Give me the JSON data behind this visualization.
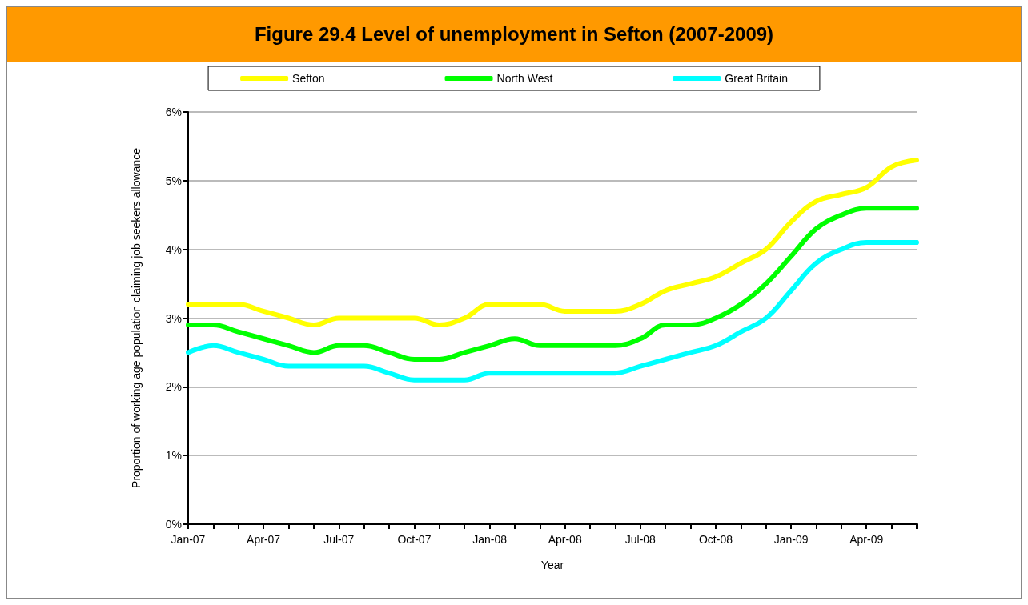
{
  "chart_data": {
    "type": "line",
    "title": "Figure 29.4 Level of unemployment in Sefton (2007-2009)",
    "xlabel": "Year",
    "ylabel": "Proportion of working age population claiming job seekers allowance",
    "categories": [
      "Jan-07",
      null,
      null,
      "Apr-07",
      null,
      null,
      "Jul-07",
      null,
      null,
      "Oct-07",
      null,
      null,
      "Jan-08",
      null,
      null,
      "Apr-08",
      null,
      null,
      "Jul-08",
      null,
      null,
      "Oct-08",
      null,
      null,
      "Jan-09",
      null,
      null,
      "Apr-09",
      null,
      null
    ],
    "series": [
      {
        "name": "Sefton",
        "color": "#ffff00",
        "values": [
          3.2,
          3.2,
          3.2,
          3.1,
          3.0,
          2.9,
          3.0,
          3.0,
          3.0,
          3.0,
          2.9,
          3.0,
          3.2,
          3.2,
          3.2,
          3.1,
          3.1,
          3.1,
          3.2,
          3.4,
          3.5,
          3.6,
          3.8,
          4.0,
          4.4,
          4.7,
          4.8,
          4.9,
          5.2,
          5.3
        ]
      },
      {
        "name": "North West",
        "color": "#00ff00",
        "values": [
          2.9,
          2.9,
          2.8,
          2.7,
          2.6,
          2.5,
          2.6,
          2.6,
          2.5,
          2.4,
          2.4,
          2.5,
          2.6,
          2.7,
          2.6,
          2.6,
          2.6,
          2.6,
          2.7,
          2.9,
          2.9,
          3.0,
          3.2,
          3.5,
          3.9,
          4.3,
          4.5,
          4.6,
          4.6,
          4.6
        ]
      },
      {
        "name": "Great Britain",
        "color": "#00ffff",
        "values": [
          2.5,
          2.6,
          2.5,
          2.4,
          2.3,
          2.3,
          2.3,
          2.3,
          2.2,
          2.1,
          2.1,
          2.1,
          2.2,
          2.2,
          2.2,
          2.2,
          2.2,
          2.2,
          2.3,
          2.4,
          2.5,
          2.6,
          2.8,
          3.0,
          3.4,
          3.8,
          4.0,
          4.1,
          4.1,
          4.1
        ]
      }
    ],
    "ylim": [
      0,
      6
    ],
    "yticks": [
      {
        "value": 0,
        "label": "0%"
      },
      {
        "value": 1,
        "label": "1%"
      },
      {
        "value": 2,
        "label": "2%"
      },
      {
        "value": 3,
        "label": "3%"
      },
      {
        "value": 4,
        "label": "4%"
      },
      {
        "value": 5,
        "label": "5%"
      },
      {
        "value": 6,
        "label": "6%"
      }
    ],
    "grid": "y",
    "legend": "top",
    "marker": "none",
    "line_style": "solid"
  }
}
